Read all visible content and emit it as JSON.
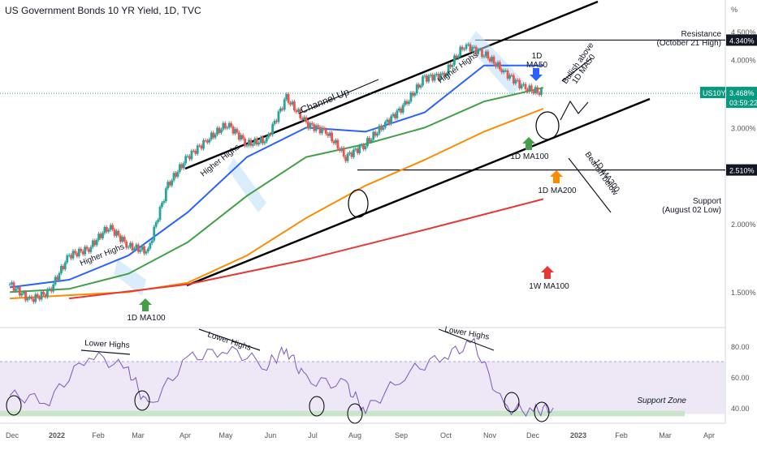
{
  "title": "US Government Bonds 10 YR Yield, 1D, TVC",
  "colors": {
    "up": "#26a69a",
    "down": "#ef5350",
    "ma50": "#2962ff",
    "ma100": "#43a047",
    "ma200": "#fb8c00",
    "w_ma100": "#e53935",
    "rsi": "#7e57c2",
    "rsi_band": "#ede7f6",
    "support_zone": "#c8e6c9",
    "axis_text": "#555555",
    "grid": "#f0f3fa"
  },
  "price_axis": {
    "unit": "%",
    "ticks": [
      "4.500%",
      "4.000%",
      "3.000%",
      "2.000%",
      "1.500%"
    ],
    "ylim_pct": [
      1.3,
      4.8
    ],
    "scale": "log"
  },
  "rsi_axis": {
    "ticks": [
      "80.00",
      "60.00",
      "40.00"
    ],
    "ylim": [
      30,
      90
    ]
  },
  "x_axis": {
    "labels": [
      "Dec",
      "2022",
      "Feb",
      "Mar",
      "Apr",
      "May",
      "Jun",
      "Jul",
      "Aug",
      "Sep",
      "Oct",
      "Nov",
      "Dec",
      "2023",
      "Feb",
      "Mar",
      "Apr"
    ]
  },
  "badges": {
    "resistance_value": "4.340%",
    "support_value": "2.510%",
    "symbol": "US10Y",
    "price": "3.468%",
    "countdown": "03:59:22"
  },
  "annotations": {
    "resistance_label": "Resistance",
    "resistance_sub": "(October 21 High)",
    "support_label": "Support",
    "support_sub": "(August 02 Low)",
    "channel": "Channel Up",
    "higher_highs_1": "Higher Highs",
    "higher_highs_2": "Higher Highs",
    "higher_highs_3": "Higher Highs",
    "ma50_label_1": "1D",
    "ma50_label_2": "MA50",
    "bullish_1": "Bullish above",
    "bullish_2": "1D MA50",
    "bearish_1": "Bearish below",
    "bearish_2": "1D MA200",
    "ma100_a": "1D MA100",
    "ma100_b": "1D MA100",
    "ma200": "1D MA200",
    "w_ma100": "1W MA100",
    "lower_highs_1": "Lower Highs",
    "lower_highs_2": "Lower Highs",
    "lower_highs_3": "Lower Highs",
    "support_zone": "Support Zone"
  },
  "chart_data": {
    "type": "line",
    "price_series": [
      {
        "name": "US10Y",
        "style": "candles",
        "x": [
          "2021-11-29",
          "2021-12-13",
          "2021-12-27",
          "2022-01-10",
          "2022-01-24",
          "2022-02-07",
          "2022-02-21",
          "2022-03-07",
          "2022-03-21",
          "2022-04-04",
          "2022-04-18",
          "2022-05-02",
          "2022-05-16",
          "2022-05-30",
          "2022-06-13",
          "2022-06-27",
          "2022-07-11",
          "2022-07-25",
          "2022-08-08",
          "2022-08-22",
          "2022-09-05",
          "2022-09-19",
          "2022-10-03",
          "2022-10-17",
          "2022-10-31",
          "2022-11-14",
          "2022-11-28",
          "2022-12-12"
        ],
        "values": [
          1.55,
          1.45,
          1.5,
          1.75,
          1.8,
          1.98,
          1.82,
          1.78,
          2.35,
          2.65,
          2.85,
          3.05,
          2.8,
          2.85,
          3.4,
          3.05,
          2.95,
          2.65,
          2.8,
          3.05,
          3.3,
          3.7,
          3.75,
          4.25,
          4.1,
          3.8,
          3.55,
          3.47
        ]
      },
      {
        "name": "1D MA50",
        "x": [
          "2021-11-29",
          "2022-01-10",
          "2022-02-21",
          "2022-04-04",
          "2022-05-16",
          "2022-06-27",
          "2022-08-08",
          "2022-09-19",
          "2022-10-31",
          "2022-12-12"
        ],
        "values": [
          1.53,
          1.58,
          1.75,
          2.1,
          2.65,
          3.0,
          2.95,
          3.2,
          3.9,
          3.9
        ]
      },
      {
        "name": "1D MA100",
        "x": [
          "2021-11-29",
          "2022-01-10",
          "2022-02-21",
          "2022-04-04",
          "2022-05-16",
          "2022-06-27",
          "2022-08-08",
          "2022-09-19",
          "2022-10-31",
          "2022-12-12"
        ],
        "values": [
          1.5,
          1.52,
          1.62,
          1.85,
          2.25,
          2.65,
          2.8,
          3.0,
          3.35,
          3.55
        ]
      },
      {
        "name": "1D MA200",
        "x": [
          "2021-11-29",
          "2022-01-10",
          "2022-02-21",
          "2022-04-04",
          "2022-05-16",
          "2022-06-27",
          "2022-08-08",
          "2022-09-19",
          "2022-10-31",
          "2022-12-12"
        ],
        "values": [
          1.46,
          1.48,
          1.5,
          1.56,
          1.75,
          2.05,
          2.35,
          2.62,
          2.95,
          3.25
        ]
      },
      {
        "name": "1W MA100",
        "x": [
          "2022-01-10",
          "2022-04-04",
          "2022-06-27",
          "2022-09-19",
          "2022-12-12"
        ],
        "values": [
          1.46,
          1.55,
          1.72,
          1.95,
          2.22
        ]
      }
    ],
    "rsi_series": {
      "name": "RSI",
      "x": [
        "2021-11-29",
        "2021-12-27",
        "2022-01-24",
        "2022-02-21",
        "2022-03-07",
        "2022-04-04",
        "2022-05-02",
        "2022-05-30",
        "2022-06-13",
        "2022-06-27",
        "2022-07-25",
        "2022-08-08",
        "2022-09-05",
        "2022-10-03",
        "2022-10-24",
        "2022-11-14",
        "2022-12-05",
        "2022-12-19"
      ],
      "values": [
        48,
        45,
        75,
        65,
        40,
        72,
        78,
        68,
        78,
        58,
        55,
        38,
        62,
        74,
        82,
        40,
        38,
        40
      ]
    },
    "levels": [
      {
        "name": "Resistance (October 21 High)",
        "value": 4.34
      },
      {
        "name": "Support (August 02 Low)",
        "value": 2.51
      }
    ],
    "rsi_levels": [
      {
        "name": "upper band",
        "value": 70
      },
      {
        "name": "Support Zone",
        "value": 36
      }
    ],
    "ylabel": "%"
  }
}
